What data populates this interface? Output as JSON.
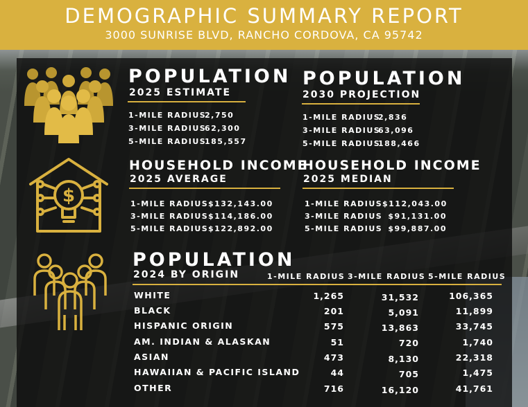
{
  "banner": {
    "title": "DEMOGRAPHIC SUMMARY REPORT",
    "address": "3000 SUNRISE BLVD, RANCHO CORDOVA, CA 95742"
  },
  "population_2025": {
    "title": "POPULATION",
    "subtitle": "2025 ESTIMATE",
    "rows": [
      {
        "label": "1-MILE RADIUS",
        "value": "2,750"
      },
      {
        "label": "3-MILE RADIUS",
        "value": "62,300"
      },
      {
        "label": "5-MILE RADIUS",
        "value": "185,557"
      }
    ]
  },
  "population_2030": {
    "title": "POPULATION",
    "subtitle": "2030 PROJECTION",
    "rows": [
      {
        "label": "1-MILE RADIUS",
        "value": "2,836"
      },
      {
        "label": "3-MILE RADIUS",
        "value": "63,096"
      },
      {
        "label": "5-MILE RADIUS",
        "value": "188,466"
      }
    ]
  },
  "income_average": {
    "title": "HOUSEHOLD INCOME",
    "subtitle": "2025 AVERAGE",
    "rows": [
      {
        "label": "1-MILE RADIUS",
        "value": "$132,143.00"
      },
      {
        "label": "3-MILE RADIUS",
        "value": "$114,186.00"
      },
      {
        "label": "5-MILE RADIUS",
        "value": "$122,892.00"
      }
    ]
  },
  "income_median": {
    "title": "HOUSEHOLD INCOME",
    "subtitle": "2025 MEDIAN",
    "rows": [
      {
        "label": "1-MILE RADIUS",
        "value": "$112,043.00"
      },
      {
        "label": "3-MILE RADIUS",
        "value": "$91,131.00"
      },
      {
        "label": "5-MILE RADIUS",
        "value": "$99,887.00"
      }
    ]
  },
  "origin": {
    "title": "POPULATION",
    "subtitle": "2024 BY ORIGIN",
    "columns": [
      "1-MILE RADIUS",
      "3-MILE RADIUS",
      "5-MILE RADIUS"
    ],
    "rows": [
      {
        "label": "WHITE",
        "v1": "1,265",
        "v3": "31,532",
        "v5": "106,365"
      },
      {
        "label": "BLACK",
        "v1": "201",
        "v3": "5,091",
        "v5": "11,899"
      },
      {
        "label": "HISPANIC ORIGIN",
        "v1": "575",
        "v3": "13,863",
        "v5": "33,745"
      },
      {
        "label": "AM. INDIAN & ALASKAN",
        "v1": "51",
        "v3": "720",
        "v5": "1,740"
      },
      {
        "label": "ASIAN",
        "v1": "473",
        "v3": "8,130",
        "v5": "22,318"
      },
      {
        "label": "HAWAIIAN & PACIFIC ISLAND",
        "v1": "44",
        "v3": "705",
        "v5": "1,475"
      },
      {
        "label": "OTHER",
        "v1": "716",
        "v3": "16,120",
        "v5": "41,761"
      }
    ]
  },
  "colors": {
    "accent": "#d9b13f",
    "panel": "#0c0c0c",
    "text": "#ffffff"
  },
  "icons": [
    "crowd-icon",
    "house-lightbulb-dollar-icon",
    "people-outline-icon"
  ]
}
